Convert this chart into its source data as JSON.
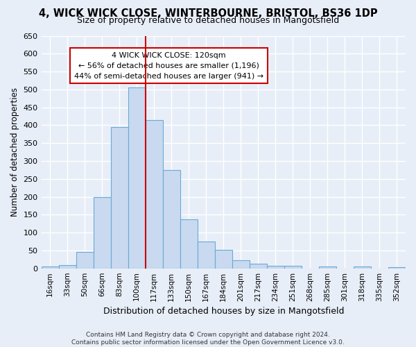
{
  "title_line1": "4, WICK WICK CLOSE, WINTERBOURNE, BRISTOL, BS36 1DP",
  "title_line2": "Size of property relative to detached houses in Mangotsfield",
  "xlabel": "Distribution of detached houses by size in Mangotsfield",
  "ylabel": "Number of detached properties",
  "categories": [
    "16sqm",
    "33sqm",
    "50sqm",
    "66sqm",
    "83sqm",
    "100sqm",
    "117sqm",
    "133sqm",
    "150sqm",
    "167sqm",
    "184sqm",
    "201sqm",
    "217sqm",
    "234sqm",
    "251sqm",
    "268sqm",
    "285sqm",
    "301sqm",
    "318sqm",
    "335sqm",
    "352sqm"
  ],
  "bar_values": [
    5,
    10,
    45,
    200,
    395,
    505,
    415,
    275,
    138,
    75,
    52,
    22,
    12,
    8,
    8,
    0,
    6,
    0,
    5,
    0,
    4
  ],
  "bar_color": "#c8d9f0",
  "bar_edgecolor": "#6aaad4",
  "vline_x": 6.0,
  "vline_color": "#cc0000",
  "annotation_text": "4 WICK WICK CLOSE: 120sqm\n← 56% of detached houses are smaller (1,196)\n44% of semi-detached houses are larger (941) →",
  "annotation_box_color": "#ffffff",
  "annotation_box_edgecolor": "#cc0000",
  "ylim": [
    0,
    650
  ],
  "yticks": [
    0,
    50,
    100,
    150,
    200,
    250,
    300,
    350,
    400,
    450,
    500,
    550,
    600,
    650
  ],
  "background_color": "#e8eef8",
  "grid_color": "#ffffff",
  "footer_line1": "Contains HM Land Registry data © Crown copyright and database right 2024.",
  "footer_line2": "Contains public sector information licensed under the Open Government Licence v3.0."
}
